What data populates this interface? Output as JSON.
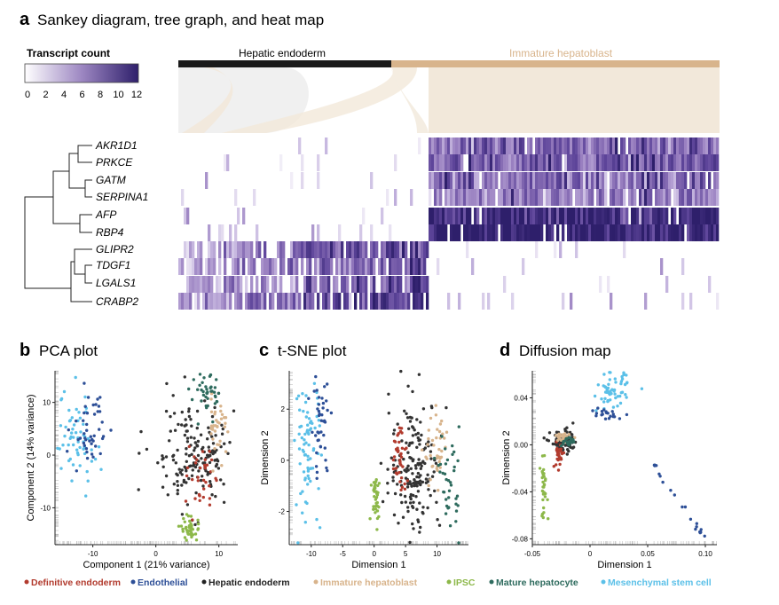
{
  "panels": {
    "a": {
      "letter": "a",
      "title": "Sankey diagram, tree graph, and heat map"
    },
    "b": {
      "letter": "b",
      "title": "PCA plot"
    },
    "c": {
      "letter": "c",
      "title": "t-SNE plot"
    },
    "d": {
      "letter": "d",
      "title": "Diffusion map"
    }
  },
  "colorbar": {
    "title": "Transcript count",
    "ticks": [
      "0",
      "2",
      "4",
      "6",
      "8",
      "10",
      "12"
    ],
    "low_color": "#ffffff",
    "high_color": "#2e1f6b"
  },
  "colors": {
    "Definitive endoderm": "#b23b2e",
    "Endothelial": "#2d4f97",
    "Hepatic endoderm": "#333333",
    "Immature hepatoblast": "#d8b48c",
    "IPSC": "#8db84a",
    "Mature hepatocyte": "#2e6b5e",
    "Mesenchymal stem cell": "#5bc0e8",
    "hepatic_bar": "#1a1a1a",
    "immature_bar": "#d8b48c",
    "sankey_fill": "#f2e8da"
  },
  "sankey": {
    "left_label": "Hepatic endoderm",
    "right_label": "Immature hepatoblast"
  },
  "genes": [
    "AKR1D1",
    "PRKCE",
    "GATM",
    "SERPINA1",
    "AFP",
    "RBP4",
    "GLIPR2",
    "TDGF1",
    "LGALS1",
    "CRABP2"
  ],
  "legend": [
    {
      "label": "Definitive endoderm",
      "color": "#b23b2e"
    },
    {
      "label": "Endothelial",
      "color": "#2d4f97"
    },
    {
      "label": "Hepatic endoderm",
      "color": "#222222"
    },
    {
      "label": "Immature hepatoblast",
      "color": "#d8b48c"
    },
    {
      "label": "IPSC",
      "color": "#8db84a"
    },
    {
      "label": "Mature hepatocyte",
      "color": "#2e6b5e"
    },
    {
      "label": "Mesenchymal stem cell",
      "color": "#5bc0e8"
    }
  ],
  "chart_data": [
    {
      "type": "heatmap",
      "rows": [
        "AKR1D1",
        "PRKCE",
        "GATM",
        "SERPINA1",
        "AFP",
        "RBP4",
        "GLIPR2",
        "TDGF1",
        "LGALS1",
        "CRABP2"
      ],
      "column_groups": [
        "Hepatic endoderm",
        "Immature hepatoblast"
      ],
      "value_range": [
        0,
        12
      ],
      "group_mean_values": {
        "Hepatic endoderm": [
          0.5,
          0.8,
          0.3,
          0.2,
          1.5,
          1.8,
          6.5,
          5.5,
          6.0,
          7.0
        ],
        "Immature hepatoblast": [
          7.0,
          7.5,
          6.5,
          5.5,
          11.0,
          11.5,
          0.4,
          0.5,
          0.2,
          1.5
        ]
      }
    },
    {
      "type": "scatter",
      "title": "PCA plot",
      "xlabel": "Component 1 (21% variance)",
      "ylabel": "Component 2 (14% variance)",
      "xlim": [
        -16,
        13
      ],
      "ylim": [
        -17,
        16
      ],
      "xticks": [
        "-10",
        "0",
        "10"
      ],
      "yticks": [
        "10",
        "0",
        "-10"
      ],
      "series": [
        {
          "name": "Mesenchymal stem cell",
          "cx": -13,
          "cy": 3,
          "sx": 1.8,
          "sy": 4.5,
          "n": 70
        },
        {
          "name": "Endothelial",
          "cx": -10.5,
          "cy": 4,
          "sx": 1.5,
          "sy": 3.5,
          "n": 45
        },
        {
          "name": "Hepatic endoderm",
          "cx": 6,
          "cy": 0,
          "sx": 3.5,
          "sy": 5,
          "n": 170
        },
        {
          "name": "Definitive endoderm",
          "cx": 7,
          "cy": -5,
          "sx": 1,
          "sy": 3,
          "n": 35
        },
        {
          "name": "Immature hepatoblast",
          "cx": 10,
          "cy": 6,
          "sx": 0.8,
          "sy": 3,
          "n": 35
        },
        {
          "name": "IPSC",
          "cx": 5.5,
          "cy": -14,
          "sx": 0.8,
          "sy": 1.3,
          "n": 40
        },
        {
          "name": "Mature hepatocyte",
          "cx": 8,
          "cy": 11,
          "sx": 1.3,
          "sy": 2,
          "n": 40
        }
      ]
    },
    {
      "type": "scatter",
      "title": "t-SNE plot",
      "xlabel": "Dimension 1",
      "ylabel": "Dimension 2",
      "xlim": [
        -13.5,
        15
      ],
      "ylim": [
        -3.3,
        3.5
      ],
      "xticks": [
        "-10",
        "-5",
        "0",
        "5",
        "10"
      ],
      "yticks": [
        "2",
        "0",
        "-2"
      ],
      "series": [
        {
          "name": "Mesenchymal stem cell",
          "cx": -10.5,
          "cy": 0.4,
          "sx": 1,
          "sy": 1.5,
          "n": 80
        },
        {
          "name": "Endothelial",
          "cx": -8.5,
          "cy": 1.5,
          "sx": 0.8,
          "sy": 1.2,
          "n": 45
        },
        {
          "name": "IPSC",
          "cx": 0.3,
          "cy": -1.4,
          "sx": 0.4,
          "sy": 0.5,
          "n": 35
        },
        {
          "name": "Hepatic endoderm",
          "cx": 6.5,
          "cy": -0.2,
          "sx": 2,
          "sy": 1.3,
          "n": 170
        },
        {
          "name": "Definitive endoderm",
          "cx": 4,
          "cy": 0,
          "sx": 0.6,
          "sy": 0.8,
          "n": 40
        },
        {
          "name": "Immature hepatoblast",
          "cx": 10,
          "cy": 0.3,
          "sx": 1,
          "sy": 0.7,
          "n": 40
        },
        {
          "name": "Mature hepatocyte",
          "cx": 12,
          "cy": -0.8,
          "sx": 0.8,
          "sy": 1,
          "n": 40
        }
      ]
    },
    {
      "type": "scatter",
      "title": "Diffusion map",
      "xlabel": "Dimension 1",
      "ylabel": "Dimension 2",
      "xlim": [
        -0.05,
        0.11
      ],
      "ylim": [
        -0.085,
        0.063
      ],
      "xticks": [
        "-0.05",
        "0",
        "0.05",
        "0.10"
      ],
      "yticks": [
        "0.04",
        "0.00",
        "-0.04",
        "-0.08"
      ],
      "series": [
        {
          "name": "Mesenchymal stem cell",
          "cx": 0.02,
          "cy": 0.045,
          "sx": 0.007,
          "sy": 0.008,
          "n": 60
        },
        {
          "name": "Endothelial",
          "cx": 0.015,
          "cy": 0.027,
          "sx": 0.006,
          "sy": 0.003,
          "n": 40
        },
        {
          "name": "Hepatic endoderm",
          "cx": -0.022,
          "cy": 0.002,
          "sx": 0.006,
          "sy": 0.005,
          "n": 90
        },
        {
          "name": "Definitive endoderm",
          "cx": -0.027,
          "cy": -0.008,
          "sx": 0.002,
          "sy": 0.006,
          "n": 30
        },
        {
          "name": "Immature hepatoblast",
          "cx": -0.024,
          "cy": 0.006,
          "sx": 0.003,
          "sy": 0.002,
          "n": 25
        },
        {
          "name": "Mature hepatocyte",
          "cx": -0.02,
          "cy": 0.003,
          "sx": 0.003,
          "sy": 0.002,
          "n": 25
        },
        {
          "name": "IPSC",
          "cx": -0.04,
          "cy": -0.038,
          "sx": 0.0015,
          "sy": 0.012,
          "n": 30
        }
      ]
    }
  ]
}
